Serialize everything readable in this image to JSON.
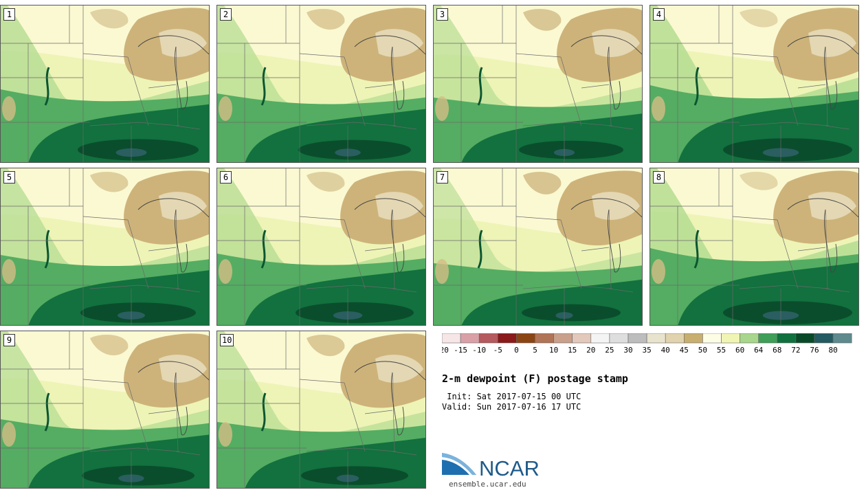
{
  "title": "2-m dewpoint (F) postage stamp",
  "init": " Init: Sat 2017-07-15 00 UTC",
  "valid": "Valid: Sun 2017-07-16 17 UTC",
  "logo_text": "NCAR",
  "footer": "ensemble.ucar.edu",
  "colorbar": {
    "ticks": [
      "-20",
      "-15",
      "-10",
      "-5",
      "0",
      "5",
      "10",
      "15",
      "20",
      "25",
      "30",
      "35",
      "40",
      "45",
      "50",
      "55",
      "60",
      "64",
      "68",
      "72",
      "76",
      "80"
    ],
    "colors": [
      "#f6e6e8",
      "#d9a1a7",
      "#b55a5e",
      "#8b1a1a",
      "#8b4513",
      "#b07456",
      "#c9a08a",
      "#e2c9bb",
      "#f4f4f4",
      "#dedede",
      "#bdbdbd",
      "#e7e3cc",
      "#e0d3ad",
      "#c8ae6f",
      "#fdfde6",
      "#f1f5b4",
      "#a8d68c",
      "#3f9e58",
      "#10703e",
      "#084a28",
      "#245a62",
      "#5e8a8e"
    ]
  },
  "stamps": [
    {
      "label": "1",
      "moist": 0.7
    },
    {
      "label": "2",
      "moist": 0.55
    },
    {
      "label": "3",
      "moist": 0.4
    },
    {
      "label": "4",
      "moist": 0.85
    },
    {
      "label": "5",
      "moist": 0.6
    },
    {
      "label": "6",
      "moist": 0.65
    },
    {
      "label": "7",
      "moist": 0.3
    },
    {
      "label": "8",
      "moist": 0.85
    },
    {
      "label": "9",
      "moist": 0.55
    },
    {
      "label": "10",
      "moist": 0.45
    }
  ]
}
